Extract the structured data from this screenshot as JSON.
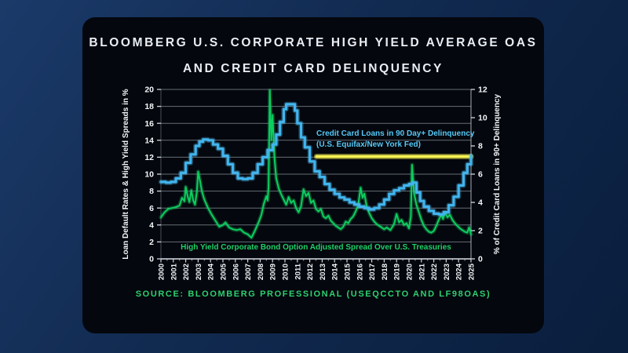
{
  "title": {
    "line1": "BLOOMBERG U.S. CORPORATE HIGH YIELD AVERAGE OAS",
    "line2": "AND CREDIT CARD DELINQUENCY"
  },
  "source": "SOURCE: BLOOMBERG PROFESSIONAL (USEQCCTO AND LF98OAS)",
  "colors": {
    "background_navy": "#112a50",
    "panel_black": "#04070d",
    "title_text": "#e9eef5",
    "grid": "#c8d4e0",
    "delinquency_blue": "#41b5ee",
    "oas_green": "#0cce60",
    "highlight_yellow": "#f7f452",
    "blue_label_text": "#57c8f6",
    "green_label_text": "#1ed167",
    "source_green": "#2ed070"
  },
  "chart_data": {
    "type": "line",
    "title": "Bloomberg U.S. Corporate High Yield Average OAS and Credit Card Delinquency",
    "grid": true,
    "x_axis": {
      "range": [
        2000,
        2025
      ],
      "tick_labels": [
        "2000",
        "2001",
        "2002",
        "2003",
        "2004",
        "2005",
        "2006",
        "2007",
        "2008",
        "2009",
        "2010",
        "2011",
        "2012",
        "2013",
        "2014",
        "2015",
        "2016",
        "2017",
        "2018",
        "2019",
        "2020",
        "2021",
        "2022",
        "2023",
        "2024",
        "2025"
      ]
    },
    "left_axis": {
      "label": "Loan Default Rates & High Yield Spreads in %",
      "range": [
        0,
        20
      ],
      "ticks": [
        0,
        2,
        4,
        6,
        8,
        10,
        12,
        14,
        16,
        18,
        20
      ]
    },
    "right_axis": {
      "label": "% of Credit Card Loans in 90+ Delinquency",
      "range": [
        0,
        12
      ],
      "ticks": [
        0,
        2,
        4,
        6,
        8,
        10,
        12
      ]
    },
    "series": [
      {
        "name": "High Yield Corporate Bond Option Adjusted Spread Over U.S. Treasuries",
        "axis": "left",
        "color": "#0cce60",
        "style": "linear",
        "points": [
          [
            2000.0,
            4.9
          ],
          [
            2000.3,
            5.5
          ],
          [
            2000.6,
            5.9
          ],
          [
            2000.9,
            6.0
          ],
          [
            2001.2,
            6.1
          ],
          [
            2001.5,
            6.3
          ],
          [
            2001.7,
            7.2
          ],
          [
            2001.9,
            6.8
          ],
          [
            2002.0,
            8.5
          ],
          [
            2002.15,
            7.4
          ],
          [
            2002.3,
            6.7
          ],
          [
            2002.45,
            8.1
          ],
          [
            2002.6,
            6.9
          ],
          [
            2002.75,
            6.4
          ],
          [
            2002.9,
            7.9
          ],
          [
            2003.0,
            10.3
          ],
          [
            2003.15,
            9.2
          ],
          [
            2003.3,
            8.0
          ],
          [
            2003.5,
            7.0
          ],
          [
            2003.8,
            6.0
          ],
          [
            2004.1,
            5.2
          ],
          [
            2004.4,
            4.5
          ],
          [
            2004.7,
            3.8
          ],
          [
            2005.0,
            4.0
          ],
          [
            2005.2,
            4.3
          ],
          [
            2005.5,
            3.7
          ],
          [
            2005.8,
            3.5
          ],
          [
            2006.1,
            3.4
          ],
          [
            2006.4,
            3.5
          ],
          [
            2006.7,
            3.1
          ],
          [
            2007.0,
            2.9
          ],
          [
            2007.3,
            2.5
          ],
          [
            2007.6,
            3.4
          ],
          [
            2007.9,
            4.4
          ],
          [
            2008.1,
            5.2
          ],
          [
            2008.3,
            6.5
          ],
          [
            2008.5,
            7.4
          ],
          [
            2008.6,
            6.9
          ],
          [
            2008.68,
            8.5
          ],
          [
            2008.78,
            19.9
          ],
          [
            2008.9,
            14.0
          ],
          [
            2009.0,
            17.0
          ],
          [
            2009.15,
            12.0
          ],
          [
            2009.3,
            9.5
          ],
          [
            2009.5,
            8.3
          ],
          [
            2009.7,
            7.6
          ],
          [
            2009.9,
            7.0
          ],
          [
            2010.1,
            6.4
          ],
          [
            2010.3,
            7.3
          ],
          [
            2010.5,
            6.6
          ],
          [
            2010.7,
            6.9
          ],
          [
            2010.9,
            6.0
          ],
          [
            2011.1,
            5.5
          ],
          [
            2011.3,
            6.2
          ],
          [
            2011.5,
            8.2
          ],
          [
            2011.7,
            7.4
          ],
          [
            2011.9,
            7.8
          ],
          [
            2012.1,
            6.6
          ],
          [
            2012.3,
            6.9
          ],
          [
            2012.5,
            5.9
          ],
          [
            2012.7,
            5.6
          ],
          [
            2012.9,
            5.9
          ],
          [
            2013.1,
            5.0
          ],
          [
            2013.3,
            4.8
          ],
          [
            2013.5,
            5.1
          ],
          [
            2013.7,
            4.5
          ],
          [
            2013.9,
            4.2
          ],
          [
            2014.1,
            3.9
          ],
          [
            2014.3,
            3.7
          ],
          [
            2014.5,
            3.5
          ],
          [
            2014.7,
            3.8
          ],
          [
            2014.9,
            4.4
          ],
          [
            2015.1,
            4.2
          ],
          [
            2015.3,
            4.7
          ],
          [
            2015.5,
            5.0
          ],
          [
            2015.7,
            5.6
          ],
          [
            2015.9,
            6.3
          ],
          [
            2016.1,
            8.4
          ],
          [
            2016.25,
            7.2
          ],
          [
            2016.4,
            7.7
          ],
          [
            2016.6,
            6.1
          ],
          [
            2016.8,
            5.4
          ],
          [
            2017.0,
            4.8
          ],
          [
            2017.2,
            4.4
          ],
          [
            2017.4,
            4.1
          ],
          [
            2017.7,
            3.8
          ],
          [
            2018.0,
            3.5
          ],
          [
            2018.2,
            3.7
          ],
          [
            2018.5,
            3.4
          ],
          [
            2018.8,
            4.1
          ],
          [
            2019.0,
            5.3
          ],
          [
            2019.2,
            4.3
          ],
          [
            2019.4,
            4.6
          ],
          [
            2019.6,
            4.0
          ],
          [
            2019.8,
            4.2
          ],
          [
            2020.0,
            3.6
          ],
          [
            2020.15,
            5.0
          ],
          [
            2020.25,
            11.1
          ],
          [
            2020.4,
            7.8
          ],
          [
            2020.6,
            6.4
          ],
          [
            2020.8,
            5.5
          ],
          [
            2021.0,
            4.6
          ],
          [
            2021.2,
            3.9
          ],
          [
            2021.4,
            3.5
          ],
          [
            2021.6,
            3.2
          ],
          [
            2021.8,
            3.1
          ],
          [
            2022.0,
            3.3
          ],
          [
            2022.2,
            3.9
          ],
          [
            2022.4,
            4.6
          ],
          [
            2022.6,
            5.2
          ],
          [
            2022.75,
            4.7
          ],
          [
            2022.9,
            5.5
          ],
          [
            2023.1,
            4.9
          ],
          [
            2023.3,
            5.2
          ],
          [
            2023.5,
            4.6
          ],
          [
            2023.7,
            4.2
          ],
          [
            2023.9,
            3.9
          ],
          [
            2024.1,
            3.6
          ],
          [
            2024.3,
            3.4
          ],
          [
            2024.5,
            3.2
          ],
          [
            2024.7,
            3.1
          ],
          [
            2024.85,
            3.7
          ],
          [
            2025.0,
            2.9
          ]
        ]
      },
      {
        "name": "Credit Card Loans in 90 Day+ Delinquency (U.S. Equifax/New York Fed)",
        "axis": "right",
        "color": "#41b5ee",
        "style": "step",
        "points": [
          [
            2000.0,
            5.45
          ],
          [
            2000.4,
            5.4
          ],
          [
            2000.8,
            5.45
          ],
          [
            2001.2,
            5.7
          ],
          [
            2001.6,
            6.1
          ],
          [
            2002.0,
            6.8
          ],
          [
            2002.4,
            7.4
          ],
          [
            2002.8,
            8.0
          ],
          [
            2003.1,
            8.3
          ],
          [
            2003.4,
            8.45
          ],
          [
            2003.8,
            8.4
          ],
          [
            2004.2,
            8.1
          ],
          [
            2004.6,
            7.8
          ],
          [
            2005.0,
            7.3
          ],
          [
            2005.4,
            6.7
          ],
          [
            2005.8,
            6.1
          ],
          [
            2006.2,
            5.7
          ],
          [
            2006.6,
            5.65
          ],
          [
            2007.0,
            5.7
          ],
          [
            2007.4,
            6.1
          ],
          [
            2007.8,
            6.7
          ],
          [
            2008.2,
            7.2
          ],
          [
            2008.6,
            7.7
          ],
          [
            2009.0,
            8.1
          ],
          [
            2009.3,
            8.8
          ],
          [
            2009.6,
            9.7
          ],
          [
            2009.9,
            10.6
          ],
          [
            2010.1,
            10.95
          ],
          [
            2010.5,
            10.95
          ],
          [
            2010.8,
            10.5
          ],
          [
            2011.0,
            9.6
          ],
          [
            2011.3,
            8.6
          ],
          [
            2011.6,
            7.9
          ],
          [
            2012.0,
            6.9
          ],
          [
            2012.4,
            6.2
          ],
          [
            2012.8,
            5.8
          ],
          [
            2013.2,
            5.3
          ],
          [
            2013.6,
            4.9
          ],
          [
            2014.0,
            4.6
          ],
          [
            2014.4,
            4.35
          ],
          [
            2014.8,
            4.2
          ],
          [
            2015.2,
            4.0
          ],
          [
            2015.6,
            3.85
          ],
          [
            2016.0,
            3.7
          ],
          [
            2016.4,
            3.6
          ],
          [
            2016.8,
            3.5
          ],
          [
            2017.2,
            3.6
          ],
          [
            2017.6,
            3.85
          ],
          [
            2018.0,
            4.2
          ],
          [
            2018.4,
            4.6
          ],
          [
            2018.8,
            4.85
          ],
          [
            2019.2,
            5.0
          ],
          [
            2019.6,
            5.2
          ],
          [
            2020.0,
            5.3
          ],
          [
            2020.3,
            5.4
          ],
          [
            2020.6,
            4.7
          ],
          [
            2020.9,
            4.1
          ],
          [
            2021.2,
            3.7
          ],
          [
            2021.6,
            3.4
          ],
          [
            2022.0,
            3.2
          ],
          [
            2022.4,
            3.15
          ],
          [
            2022.8,
            3.3
          ],
          [
            2023.2,
            3.8
          ],
          [
            2023.6,
            4.4
          ],
          [
            2024.0,
            5.2
          ],
          [
            2024.4,
            6.1
          ],
          [
            2024.7,
            6.7
          ],
          [
            2025.0,
            7.3
          ]
        ]
      }
    ],
    "annotations": [
      {
        "line1": "Credit Card Loans in 90 Day+ Delinquency",
        "line2": "(U.S. Equifax/New York Fed)",
        "color": "#57c8f6"
      },
      {
        "text": "High Yield Corporate Bond Option Adjusted Spread Over U.S. Treasuries",
        "color": "#1ed167"
      },
      {
        "type": "highlight-line",
        "axis": "right",
        "value": 7.25,
        "x_from": 2012.55,
        "x_to": 2025.0,
        "color": "#f7f452"
      }
    ]
  }
}
